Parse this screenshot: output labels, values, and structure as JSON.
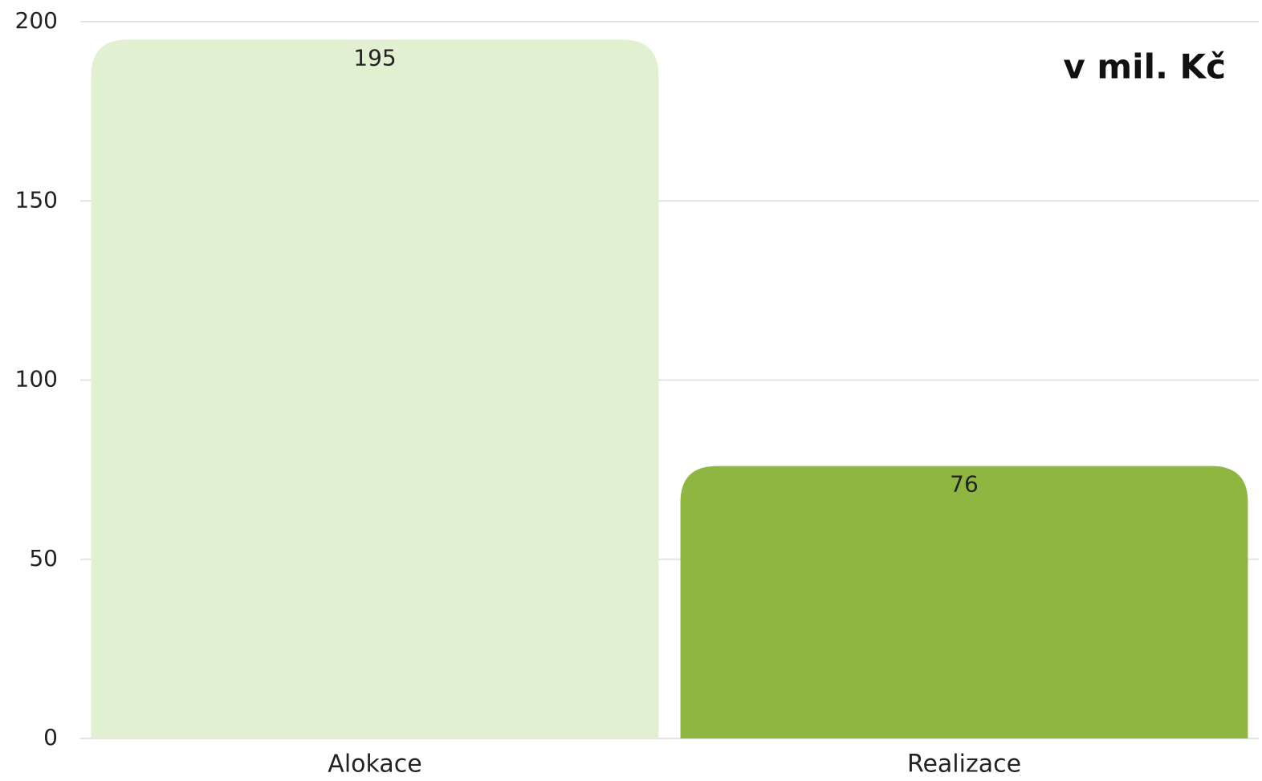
{
  "chart_data": {
    "type": "bar",
    "annotation": "v mil. Kč",
    "categories": [
      "Alokace",
      "Realizace"
    ],
    "values": [
      195,
      76
    ],
    "colors": [
      "#e2f0d2",
      "#8fb640"
    ],
    "ylim": [
      0,
      200
    ],
    "yticks": [
      0,
      50,
      100,
      150,
      200
    ],
    "grid": true
  }
}
